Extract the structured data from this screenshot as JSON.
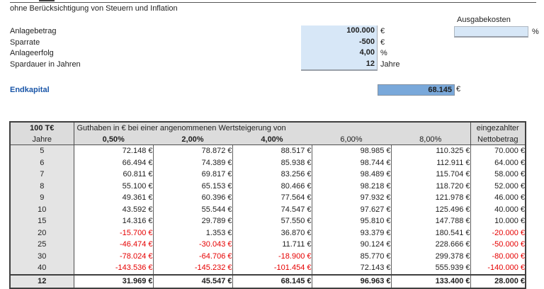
{
  "window": {
    "subtitle": "ohne Berücksichtigung von Steuern und Inflation"
  },
  "inputs": {
    "rows": [
      {
        "label": "Anlagebetrag",
        "value": "100.000",
        "unit": "€"
      },
      {
        "label": "Sparrate",
        "value": "-500",
        "unit": "€"
      },
      {
        "label": "Anlageerfolg",
        "value": "4,00",
        "unit": "%"
      },
      {
        "label": "Spardauer in Jahren",
        "value": "12",
        "unit": "Jahre"
      }
    ],
    "ausgabekosten": {
      "label": "Ausgabekosten",
      "value": "",
      "unit": "%"
    }
  },
  "result": {
    "label": "Endkapital",
    "value": "68.145",
    "unit": "€"
  },
  "table": {
    "corner_title": "100 T€",
    "corner_subtitle": "Jahre",
    "span_header": "Guthaben in € bei einer angenommenen Wertsteigerung von",
    "rate_headers": [
      {
        "label": "0,50%",
        "bold": true
      },
      {
        "label": "2,00%",
        "bold": true
      },
      {
        "label": "4,00%",
        "bold": true
      },
      {
        "label": "6,00%",
        "bold": false
      },
      {
        "label": "8,00%",
        "bold": false
      }
    ],
    "last_col_line1": "eingezahlter",
    "last_col_line2": "Nettobetrag",
    "rows": [
      {
        "year": "5",
        "values": [
          "72.148 €",
          "78.872 €",
          "88.517 €",
          "98.985 €",
          "110.325 €",
          "70.000 €"
        ]
      },
      {
        "year": "6",
        "values": [
          "66.494 €",
          "74.389 €",
          "85.938 €",
          "98.744 €",
          "112.911 €",
          "64.000 €"
        ]
      },
      {
        "year": "7",
        "values": [
          "60.811 €",
          "69.817 €",
          "83.256 €",
          "98.489 €",
          "115.704 €",
          "58.000 €"
        ]
      },
      {
        "year": "8",
        "values": [
          "55.100 €",
          "65.153 €",
          "80.466 €",
          "98.218 €",
          "118.720 €",
          "52.000 €"
        ]
      },
      {
        "year": "9",
        "values": [
          "49.361 €",
          "60.396 €",
          "77.564 €",
          "97.932 €",
          "121.978 €",
          "46.000 €"
        ]
      },
      {
        "year": "10",
        "values": [
          "43.592 €",
          "55.544 €",
          "74.547 €",
          "97.627 €",
          "125.496 €",
          "40.000 €"
        ]
      },
      {
        "year": "15",
        "values": [
          "14.316 €",
          "29.789 €",
          "57.550 €",
          "95.810 €",
          "147.788 €",
          "10.000 €"
        ]
      },
      {
        "year": "20",
        "values": [
          "-15.700 €",
          "1.353 €",
          "36.870 €",
          "93.379 €",
          "180.541 €",
          "-20.000 €"
        ]
      },
      {
        "year": "25",
        "values": [
          "-46.474 €",
          "-30.043 €",
          "11.711 €",
          "90.124 €",
          "228.666 €",
          "-50.000 €"
        ]
      },
      {
        "year": "30",
        "values": [
          "-78.024 €",
          "-64.706 €",
          "-18.900 €",
          "85.770 €",
          "299.378 €",
          "-80.000 €"
        ]
      },
      {
        "year": "40",
        "values": [
          "-143.536 €",
          "-145.232 €",
          "-101.454 €",
          "72.143 €",
          "555.939 €",
          "-140.000 €"
        ]
      }
    ],
    "total_row": {
      "year": "12",
      "values": [
        "31.969 €",
        "45.547 €",
        "68.145 €",
        "96.963 €",
        "133.400 €",
        "28.000 €"
      ]
    }
  },
  "colors": {
    "input_fill": "#d7e7f7",
    "result_fill": "#79a8da",
    "result_label": "#1a56a8",
    "negative": "#e60000",
    "header_fill": "#dcdcdc",
    "year_fill": "#e4e4e4"
  }
}
